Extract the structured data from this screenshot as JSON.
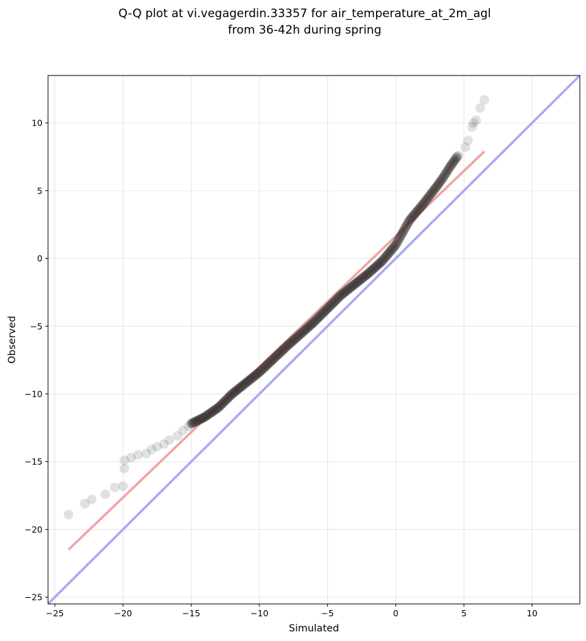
{
  "chart_data": {
    "type": "scatter",
    "title_lines": [
      "Q-Q plot at vi.vegagerdin.33357 for air_temperature_at_2m_agl",
      "from 36-42h during spring"
    ],
    "xlabel": "Simulated",
    "ylabel": "Observed",
    "xlim": [
      -25.5,
      13.5
    ],
    "ylim": [
      -25.5,
      13.5
    ],
    "xticks": [
      -25,
      -20,
      -15,
      -10,
      -5,
      0,
      5,
      10
    ],
    "yticks": [
      -25,
      -20,
      -15,
      -10,
      -5,
      0,
      5,
      10
    ],
    "xtick_labels": [
      "−25",
      "−20",
      "−15",
      "−10",
      "−5",
      "0",
      "5",
      "10"
    ],
    "ytick_labels": [
      "−25",
      "−20",
      "−15",
      "−10",
      "−5",
      "0",
      "5",
      "10"
    ],
    "grid": true,
    "colors": {
      "points": "#333333",
      "fit_line": "#f4a3a3",
      "identity_line": "#aaaaf2",
      "dense_core": "#8b1a1a"
    },
    "fit_line": {
      "x": [
        -24.0,
        6.5
      ],
      "y": [
        -21.5,
        7.9
      ]
    },
    "identity_line": {
      "x": [
        -25.5,
        13.5
      ],
      "y": [
        -25.5,
        13.5
      ]
    },
    "tail_points": [
      {
        "x": -24.0,
        "y": -18.9
      },
      {
        "x": -22.8,
        "y": -18.1
      },
      {
        "x": -22.3,
        "y": -17.8
      },
      {
        "x": -21.3,
        "y": -17.4
      },
      {
        "x": -20.6,
        "y": -16.9
      },
      {
        "x": -20.0,
        "y": -16.8
      },
      {
        "x": -19.9,
        "y": -15.5
      },
      {
        "x": -19.9,
        "y": -14.9
      },
      {
        "x": -19.4,
        "y": -14.7
      },
      {
        "x": -18.9,
        "y": -14.5
      },
      {
        "x": -18.3,
        "y": -14.4
      },
      {
        "x": -17.9,
        "y": -14.1
      },
      {
        "x": -17.5,
        "y": -13.9
      },
      {
        "x": -17.0,
        "y": -13.7
      },
      {
        "x": -16.6,
        "y": -13.4
      },
      {
        "x": -16.0,
        "y": -13.1
      },
      {
        "x": -15.6,
        "y": -12.7
      },
      {
        "x": -15.2,
        "y": -12.4
      },
      {
        "x": 4.6,
        "y": 7.6
      },
      {
        "x": 5.1,
        "y": 8.2
      },
      {
        "x": 5.3,
        "y": 8.7
      },
      {
        "x": 5.6,
        "y": 9.7
      },
      {
        "x": 5.7,
        "y": 10.0
      },
      {
        "x": 5.9,
        "y": 10.2
      },
      {
        "x": 6.2,
        "y": 11.1
      },
      {
        "x": 6.5,
        "y": 11.7
      }
    ],
    "dense_curve": [
      {
        "x": -15.0,
        "y": -12.2
      },
      {
        "x": -14.0,
        "y": -11.7
      },
      {
        "x": -13.0,
        "y": -11.0
      },
      {
        "x": -12.0,
        "y": -10.0
      },
      {
        "x": -10.0,
        "y": -8.4
      },
      {
        "x": -8.0,
        "y": -6.5
      },
      {
        "x": -6.0,
        "y": -4.7
      },
      {
        "x": -4.0,
        "y": -2.7
      },
      {
        "x": -2.0,
        "y": -1.1
      },
      {
        "x": -1.0,
        "y": -0.2
      },
      {
        "x": 0.0,
        "y": 1.0
      },
      {
        "x": 1.0,
        "y": 2.8
      },
      {
        "x": 2.0,
        "y": 4.0
      },
      {
        "x": 3.0,
        "y": 5.3
      },
      {
        "x": 3.5,
        "y": 6.0
      },
      {
        "x": 4.0,
        "y": 6.8
      },
      {
        "x": 4.5,
        "y": 7.5
      }
    ]
  }
}
